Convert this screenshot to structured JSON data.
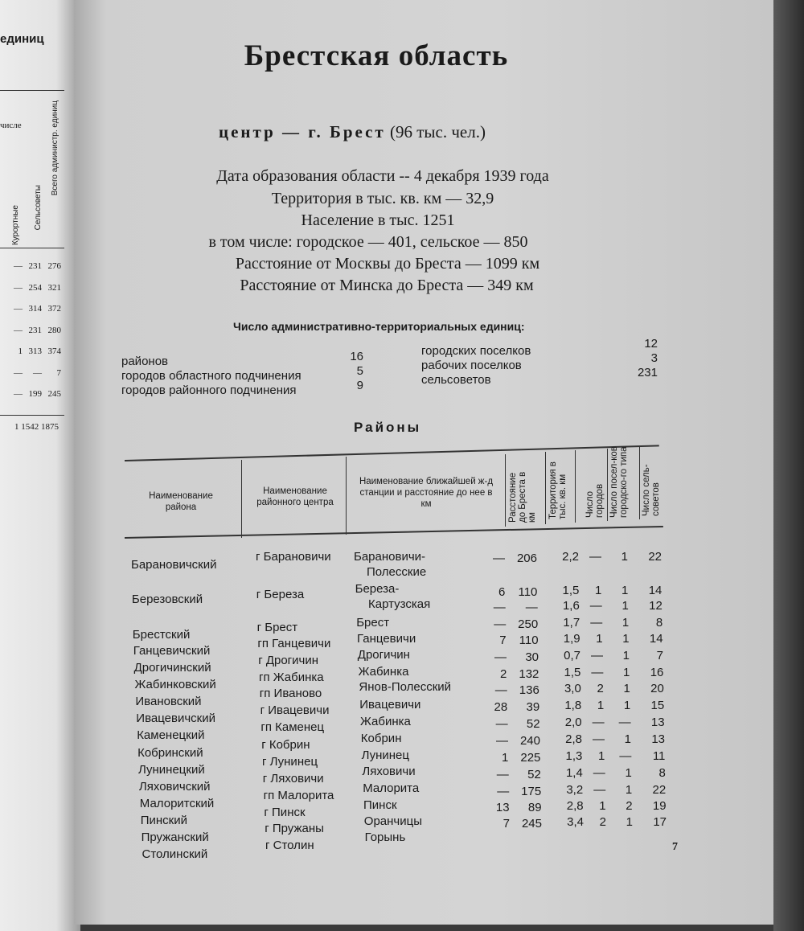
{
  "left_page": {
    "heading_fragment": "единиц",
    "header_fragment": "числе",
    "col_headers": [
      "Курортные",
      "Сельсоветы",
      "Всего администр. единиц"
    ],
    "rows": [
      [
        "—",
        "231",
        "276"
      ],
      [
        "—",
        "254",
        "321"
      ],
      [
        "—",
        "314",
        "372"
      ],
      [
        "—",
        "231",
        "280"
      ],
      [
        "1",
        "313",
        "374"
      ],
      [
        "—",
        "—",
        "7"
      ],
      [
        "—",
        "199",
        "245"
      ]
    ],
    "total": [
      "1",
      "1542",
      "1875"
    ]
  },
  "title": "Брестская область",
  "center": {
    "prefix": "центр — г.",
    "city": "Брест",
    "population": "(96 тыс. чел.)"
  },
  "info": [
    "Дата образования области -- 4 декабря 1939 года",
    "Территория в тыс. кв. км — 32,9",
    "Население в тыс. 1251",
    "в том числе: городское — 401, сельское — 850",
    "Расстояние от Москвы до Бреста — 1099 км",
    "Расстояние от Минска до Бреста — 349 км"
  ],
  "admin_units": {
    "heading": "Число административно-территориальных единиц:",
    "left": [
      {
        "label": "районов",
        "value": "16"
      },
      {
        "label": "городов областного подчинения",
        "value": "5"
      },
      {
        "label": "городов районного подчинения",
        "value": "9"
      }
    ],
    "right": [
      {
        "label": "городских поселков",
        "value": "12"
      },
      {
        "label": "рабочих поселков",
        "value": "3"
      },
      {
        "label": "сельсоветов",
        "value": "231"
      }
    ]
  },
  "districts_heading": "Районы",
  "table": {
    "headers": [
      "Наименование района",
      "Наименование районного центра",
      "Наименование ближайшей ж-д станции и расстояние до нее в км",
      "Расстояние до Бреста в км",
      "Территория в тыс. кв. км",
      "Число городов",
      "Число посел-ков городско-го типа",
      "Число сель-советов"
    ],
    "names": [
      "Барановичский",
      "Березовский",
      "Брестский",
      "Ганцевичский",
      "Дрогичинский",
      "Жабинковский",
      "Ивановский",
      "Ивацевичский",
      "Каменецкий",
      "Кобринский",
      "Лунинецкий",
      "Ляховичский",
      "Малоритский",
      "Пинский",
      "Пружанский",
      "Столинский"
    ],
    "centers": [
      "г Барановичи",
      "г Береза",
      "г Брест",
      "гп Ганцевичи",
      "г Дрогичин",
      "гп Жабинка",
      "гп Иваново",
      "г Ивацевичи",
      "гп Каменец",
      "г Кобрин",
      "г Лунинец",
      "г Ляховичи",
      "гп Малорита",
      "г Пинск",
      "г Пружаны",
      "г Столин"
    ],
    "stations": [
      "Барановичи-",
      "Полесские",
      "Береза-",
      "Картузская",
      "Брест",
      "Ганцевичи",
      "Дрогичин",
      "Жабинка",
      "Янов-Полесский",
      "Ивацевичи",
      "Жабинка",
      "Кобрин",
      "Лунинец",
      "Ляховичи",
      "Малорита",
      "Пинск",
      "Оранчицы",
      "Горынь"
    ],
    "numeric_rows": [
      [
        "—",
        "206",
        "2,2",
        "—",
        "1",
        "22"
      ],
      [
        "6",
        "110",
        "1,5",
        "1",
        "1",
        "14"
      ],
      [
        "—",
        "—",
        "1,6",
        "—",
        "1",
        "12"
      ],
      [
        "—",
        "250",
        "1,7",
        "—",
        "1",
        "8"
      ],
      [
        "7",
        "110",
        "1,9",
        "1",
        "1",
        "14"
      ],
      [
        "—",
        "30",
        "0,7",
        "—",
        "1",
        "7"
      ],
      [
        "2",
        "132",
        "1,5",
        "—",
        "1",
        "16"
      ],
      [
        "—",
        "136",
        "3,0",
        "2",
        "1",
        "20"
      ],
      [
        "28",
        "39",
        "1,8",
        "1",
        "1",
        "15"
      ],
      [
        "—",
        "52",
        "2,0",
        "—",
        "—",
        "13"
      ],
      [
        "—",
        "240",
        "2,8",
        "—",
        "1",
        "13"
      ],
      [
        "1",
        "225",
        "1,3",
        "1",
        "—",
        "11"
      ],
      [
        "—",
        "52",
        "1,4",
        "—",
        "1",
        "8"
      ],
      [
        "—",
        "175",
        "3,2",
        "—",
        "1",
        "22"
      ],
      [
        "13",
        "89",
        "2,8",
        "1",
        "2",
        "19"
      ],
      [
        "7",
        "245",
        "3,4",
        "2",
        "1",
        "17"
      ]
    ]
  },
  "page_number": "7"
}
